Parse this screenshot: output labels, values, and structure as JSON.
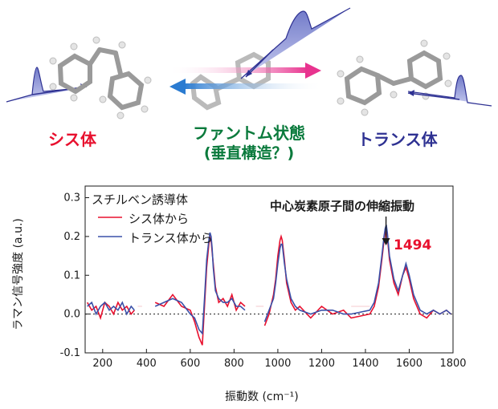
{
  "labels": {
    "cis": "シス体",
    "trans": "トランス体",
    "phantom": "ファントム状態",
    "phantom_sub": "(垂直構造？)",
    "annotation": "中心炭素原子間の伸縮振動",
    "peak_value": "1494"
  },
  "chart_data": {
    "type": "line",
    "xlabel": "振動数 (cm⁻¹)",
    "ylabel": "ラマン信号強度 (a.u.)",
    "xlim": [
      120,
      1800
    ],
    "ylim": [
      -0.1,
      0.33
    ],
    "xticks": [
      "200",
      "400",
      "600",
      "800",
      "1000",
      "1200",
      "1400",
      "1600",
      "1800"
    ],
    "yticks": [
      "0.0",
      "0.1",
      "0.2",
      "0.3",
      "-0.1"
    ],
    "legend_title": "スチルベン誘導体",
    "legend_position": "top-left",
    "series": [
      {
        "name": "シス体から",
        "color": "#e8102e",
        "x": [
          130,
          150,
          170,
          190,
          210,
          230,
          250,
          270,
          290,
          310,
          330,
          345,
          440,
          480,
          520,
          560,
          600,
          620,
          640,
          655,
          665,
          675,
          685,
          690,
          695,
          700,
          705,
          715,
          730,
          750,
          770,
          790,
          810,
          830,
          850,
          940,
          960,
          980,
          990,
          1000,
          1010,
          1015,
          1020,
          1030,
          1040,
          1060,
          1080,
          1100,
          1150,
          1200,
          1250,
          1300,
          1335,
          1420,
          1440,
          1460,
          1475,
          1485,
          1490,
          1495,
          1500,
          1510,
          1530,
          1550,
          1570,
          1585,
          1590,
          1600,
          1620,
          1650,
          1680,
          1710,
          1740,
          1770,
          1790
        ],
        "y": [
          0.03,
          0.01,
          0.02,
          -0.01,
          0.03,
          0.02,
          0.0,
          0.03,
          0.01,
          0.02,
          0.0,
          0.01,
          0.03,
          0.02,
          0.05,
          0.02,
          0.01,
          -0.02,
          -0.06,
          -0.08,
          0.02,
          0.12,
          0.18,
          0.2,
          0.19,
          0.16,
          0.13,
          0.07,
          0.03,
          0.04,
          0.02,
          0.05,
          0.01,
          0.03,
          0.02,
          -0.03,
          0.0,
          0.05,
          0.09,
          0.15,
          0.19,
          0.2,
          0.19,
          0.14,
          0.08,
          0.03,
          0.01,
          0.02,
          -0.01,
          0.02,
          0.0,
          0.01,
          -0.01,
          0.0,
          0.02,
          0.07,
          0.14,
          0.19,
          0.21,
          0.22,
          0.2,
          0.14,
          0.08,
          0.05,
          0.1,
          0.12,
          0.11,
          0.09,
          0.04,
          0.0,
          -0.01,
          0.01,
          0.0,
          0.01,
          0.0
        ]
      },
      {
        "name": "トランス体から",
        "color": "#3a50a8",
        "x": [
          130,
          150,
          170,
          190,
          210,
          230,
          250,
          270,
          290,
          310,
          330,
          345,
          440,
          480,
          520,
          560,
          600,
          620,
          640,
          655,
          665,
          675,
          685,
          690,
          695,
          700,
          705,
          715,
          730,
          750,
          770,
          790,
          810,
          830,
          850,
          940,
          960,
          980,
          990,
          1000,
          1010,
          1015,
          1020,
          1030,
          1040,
          1060,
          1080,
          1100,
          1150,
          1200,
          1250,
          1300,
          1335,
          1420,
          1440,
          1460,
          1475,
          1485,
          1490,
          1495,
          1500,
          1510,
          1530,
          1550,
          1570,
          1585,
          1590,
          1600,
          1620,
          1650,
          1680,
          1710,
          1740,
          1770,
          1790
        ],
        "y": [
          0.02,
          0.03,
          0.0,
          0.02,
          0.03,
          0.01,
          0.02,
          0.01,
          0.03,
          0.0,
          0.02,
          0.01,
          0.02,
          0.03,
          0.04,
          0.03,
          0.0,
          -0.01,
          -0.04,
          -0.05,
          0.04,
          0.14,
          0.19,
          0.21,
          0.2,
          0.17,
          0.12,
          0.06,
          0.04,
          0.03,
          0.03,
          0.04,
          0.02,
          0.02,
          0.01,
          -0.02,
          0.01,
          0.04,
          0.08,
          0.13,
          0.17,
          0.18,
          0.18,
          0.13,
          0.09,
          0.04,
          0.02,
          0.01,
          0.0,
          0.01,
          0.01,
          0.0,
          0.0,
          0.01,
          0.03,
          0.08,
          0.15,
          0.2,
          0.22,
          0.23,
          0.21,
          0.15,
          0.09,
          0.06,
          0.1,
          0.13,
          0.12,
          0.1,
          0.05,
          0.01,
          0.0,
          0.01,
          0.0,
          0.01,
          0.0
        ]
      }
    ]
  }
}
